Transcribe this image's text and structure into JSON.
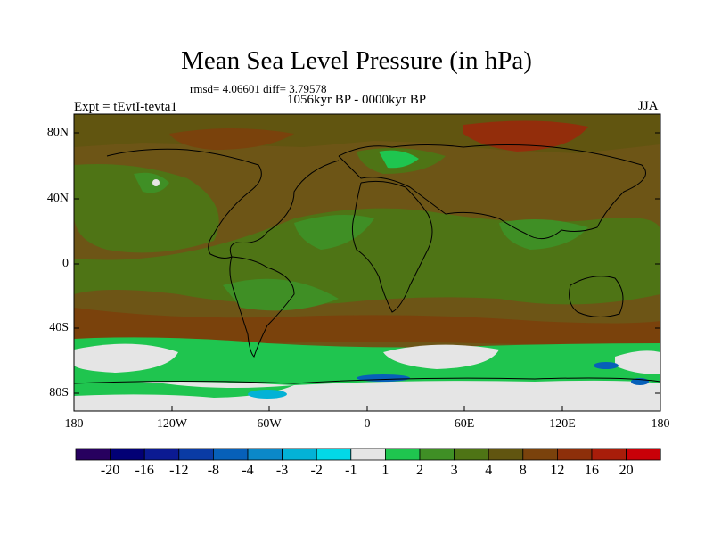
{
  "title": "Mean Sea Level Pressure (in hPa)",
  "stats": "rmsd= 4.06601 diff= 3.79578",
  "experiment": "Expt = tEvtI-tevta1",
  "period": "1056kyr BP - 0000kyr BP",
  "season": "JJA",
  "y_axis_labels": [
    "80N",
    "40N",
    "0",
    "40S",
    "80S"
  ],
  "x_axis_labels": [
    "180",
    "120W",
    "60W",
    "0",
    "60E",
    "120E",
    "180"
  ],
  "colorbar": {
    "labels": [
      "-20",
      "-16",
      "-12",
      "-8",
      "-4",
      "-3",
      "-2",
      "-1",
      "1",
      "2",
      "3",
      "4",
      "8",
      "12",
      "16",
      "20"
    ],
    "colors": [
      "#27005f",
      "#020075",
      "#0b1a92",
      "#0a3ba5",
      "#0760b9",
      "#0b88c8",
      "#03b2d6",
      "#02d9e7",
      "#e5e5e5",
      "#1fc54f",
      "#3f8f25",
      "#4e7415",
      "#615510",
      "#7a420c",
      "#8d2f0a",
      "#a81d0a",
      "#c80008"
    ]
  },
  "map_colors": {
    "base": "#6d5516",
    "olive": "#4e7415",
    "green": "#3f8f25",
    "bright_green": "#1fc54f",
    "brown": "#7a420c",
    "red": "#a81d0a",
    "neutral": "#e5e5e5",
    "cyan": "#02d9e7",
    "blue": "#0760b9"
  }
}
